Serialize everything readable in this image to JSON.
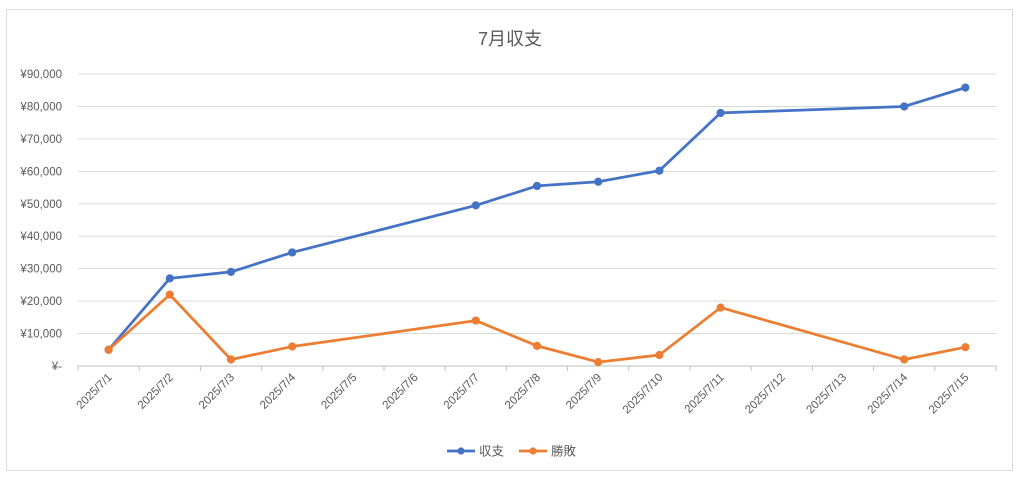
{
  "chart_data": {
    "type": "line",
    "title": "7月収支",
    "xlabel": "",
    "ylabel": "",
    "categories": [
      "2025/7/1",
      "2025/7/2",
      "2025/7/3",
      "2025/7/4",
      "2025/7/5",
      "2025/7/6",
      "2025/7/7",
      "2025/7/8",
      "2025/7/9",
      "2025/7/10",
      "2025/7/11",
      "2025/7/12",
      "2025/7/13",
      "2025/7/14",
      "2025/7/15"
    ],
    "y_tick_labels": [
      "¥-",
      "¥10,000",
      "¥20,000",
      "¥30,000",
      "¥40,000",
      "¥50,000",
      "¥60,000",
      "¥70,000",
      "¥80,000",
      "¥90,000"
    ],
    "ylim": [
      0,
      90000
    ],
    "grid": true,
    "legend_position": "bottom",
    "series": [
      {
        "name": "収支",
        "color": "#4472c4",
        "points": [
          {
            "x": "2025/7/1",
            "y": 5000
          },
          {
            "x": "2025/7/2",
            "y": 27000
          },
          {
            "x": "2025/7/3",
            "y": 29000
          },
          {
            "x": "2025/7/4",
            "y": 35000
          },
          {
            "x": "2025/7/7",
            "y": 49500
          },
          {
            "x": "2025/7/8",
            "y": 55500
          },
          {
            "x": "2025/7/9",
            "y": 56800
          },
          {
            "x": "2025/7/10",
            "y": 60200
          },
          {
            "x": "2025/7/11",
            "y": 78000
          },
          {
            "x": "2025/7/14",
            "y": 80000
          },
          {
            "x": "2025/7/15",
            "y": 85800
          }
        ]
      },
      {
        "name": "勝敗",
        "color": "#ed7d31",
        "points": [
          {
            "x": "2025/7/1",
            "y": 5000
          },
          {
            "x": "2025/7/2",
            "y": 22000
          },
          {
            "x": "2025/7/3",
            "y": 2000
          },
          {
            "x": "2025/7/4",
            "y": 6000
          },
          {
            "x": "2025/7/7",
            "y": 14000
          },
          {
            "x": "2025/7/8",
            "y": 6200
          },
          {
            "x": "2025/7/9",
            "y": 1200
          },
          {
            "x": "2025/7/10",
            "y": 3400
          },
          {
            "x": "2025/7/11",
            "y": 18000
          },
          {
            "x": "2025/7/14",
            "y": 2000
          },
          {
            "x": "2025/7/15",
            "y": 5800
          }
        ]
      }
    ]
  }
}
